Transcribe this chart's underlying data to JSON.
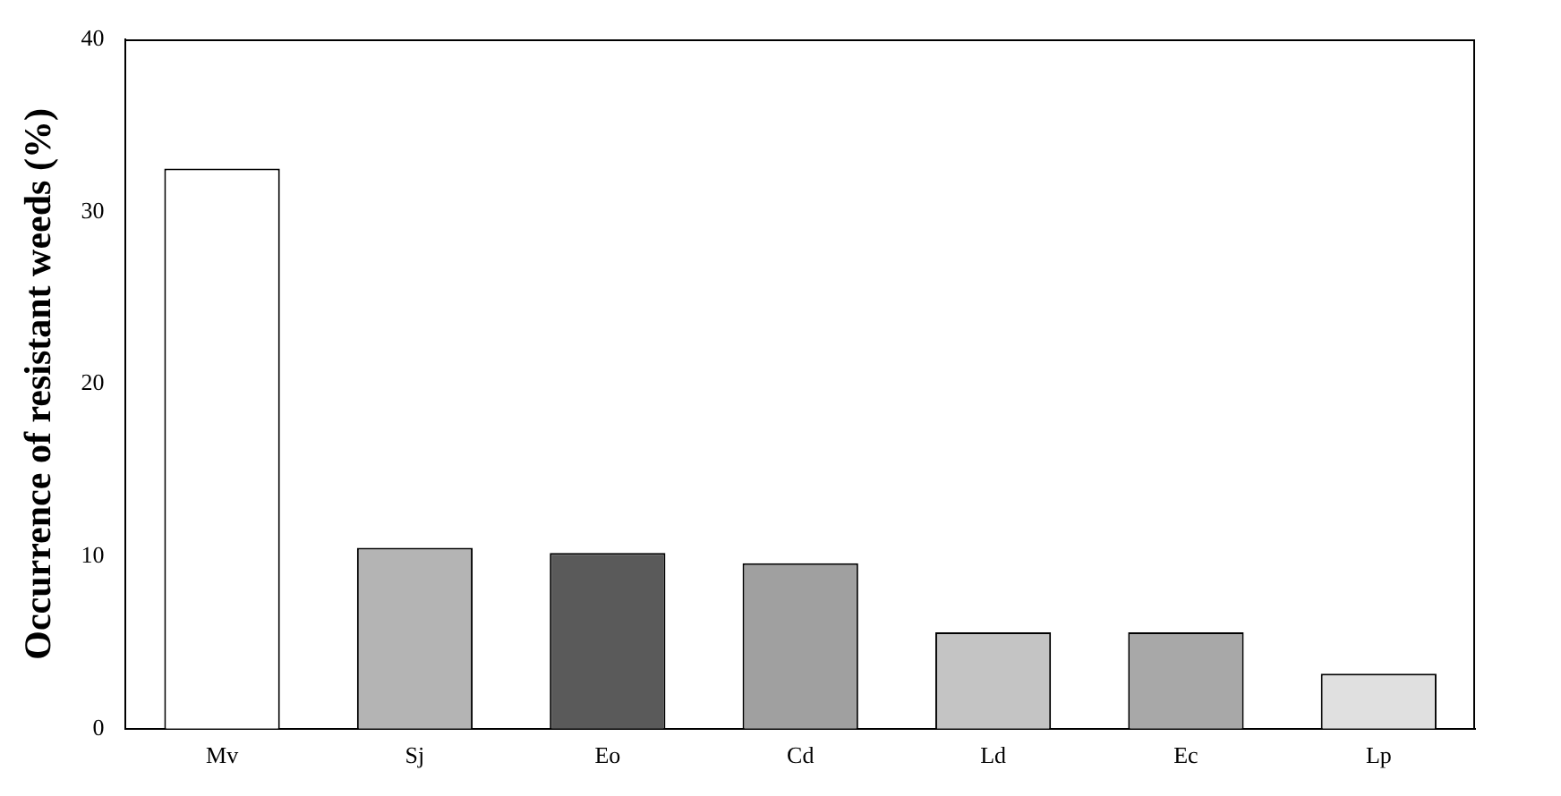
{
  "chart_data": {
    "type": "bar",
    "ylabel": "Occurrence of resistant weeds (%)",
    "categories": [
      "Mv",
      "Sj",
      "Eo",
      "Cd",
      "Ld",
      "Ec",
      "Lp"
    ],
    "values": [
      32.5,
      10.5,
      10.2,
      9.6,
      5.6,
      5.6,
      3.2
    ],
    "colors": [
      "#ffffff",
      "#b4b4b4",
      "#5a5a5a",
      "#a0a0a0",
      "#c4c4c4",
      "#a8a8a8",
      "#e0e0e0"
    ],
    "ylim": [
      0,
      40
    ],
    "yticks": [
      0,
      10,
      20,
      30,
      40
    ],
    "grid": false,
    "legend": false
  }
}
